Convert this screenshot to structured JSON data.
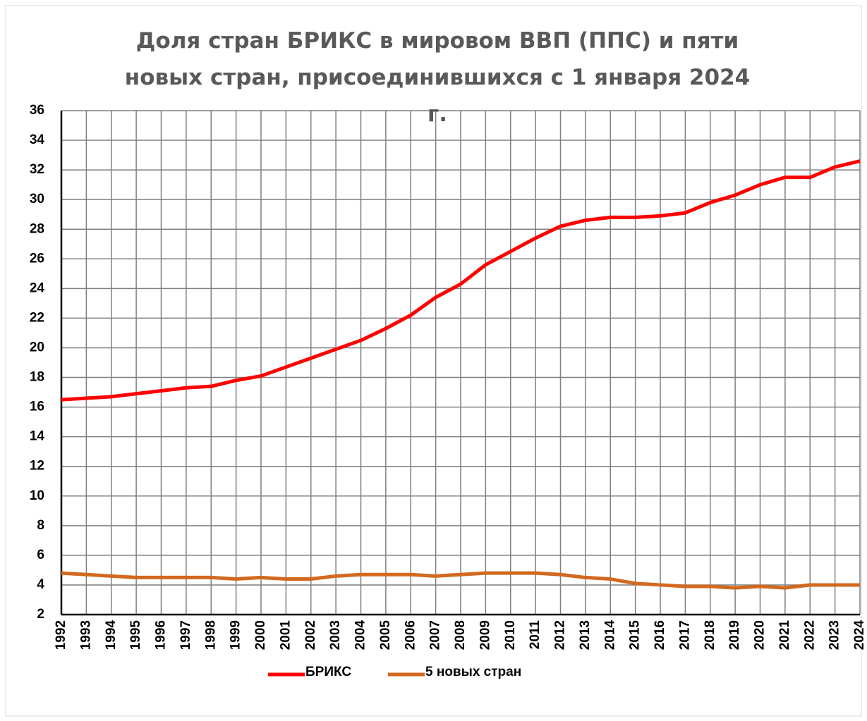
{
  "chart_data": {
    "type": "line",
    "title": "Доля стран БРИКС в мировом ВВП (ППС) и пяти новых стран, присоединившихся с 1 января 2024 г.",
    "categories": [
      "1992",
      "1993",
      "1994",
      "1995",
      "1996",
      "1997",
      "1998",
      "1999",
      "2000",
      "2001",
      "2002",
      "2003",
      "2004",
      "2005",
      "2006",
      "2007",
      "2008",
      "2009",
      "2010",
      "2011",
      "2012",
      "2013",
      "2014",
      "2015",
      "2016",
      "2017",
      "2018",
      "2019",
      "2020",
      "2021",
      "2022",
      "2023",
      "2024"
    ],
    "series": [
      {
        "name": "БРИКС",
        "color": "#ff0000",
        "values": [
          16.5,
          16.6,
          16.7,
          16.9,
          17.1,
          17.3,
          17.4,
          17.8,
          18.1,
          18.7,
          19.3,
          19.9,
          20.5,
          21.3,
          22.2,
          23.4,
          24.3,
          25.6,
          26.5,
          27.4,
          28.2,
          28.6,
          28.8,
          28.8,
          28.9,
          29.1,
          29.8,
          30.3,
          31.0,
          31.5,
          31.5,
          32.2,
          32.6
        ]
      },
      {
        "name": "5 новых стран",
        "color": "#d2691e",
        "values": [
          4.8,
          4.7,
          4.6,
          4.5,
          4.5,
          4.5,
          4.5,
          4.4,
          4.5,
          4.4,
          4.4,
          4.6,
          4.7,
          4.7,
          4.7,
          4.6,
          4.7,
          4.8,
          4.8,
          4.8,
          4.7,
          4.5,
          4.4,
          4.1,
          4.0,
          3.9,
          3.9,
          3.8,
          3.9,
          3.8,
          4.0,
          4.0,
          4.0
        ]
      }
    ],
    "ylim": [
      2,
      36
    ],
    "yticks": [
      2,
      4,
      6,
      8,
      10,
      12,
      14,
      16,
      18,
      20,
      22,
      24,
      26,
      28,
      30,
      32,
      34,
      36
    ],
    "grid": true,
    "legend": "bottom"
  }
}
